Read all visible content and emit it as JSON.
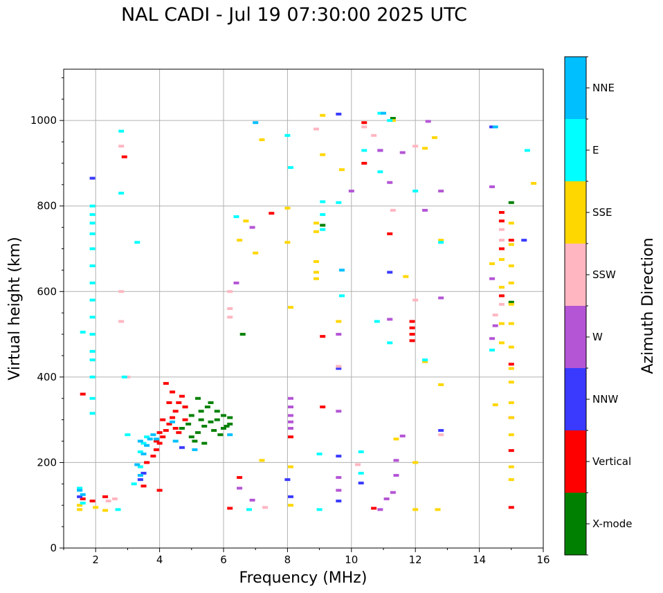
{
  "chart_data": {
    "type": "scatter",
    "title": "NAL CADI - Jul 19 07:30:00 2025 UTC",
    "xlabel": "Frequency (MHz)",
    "ylabel": "Virtual height (km)",
    "xlim": [
      1,
      16
    ],
    "ylim": [
      0,
      1120
    ],
    "xticks": [
      2,
      4,
      6,
      8,
      10,
      12,
      14,
      16
    ],
    "yticks": [
      0,
      200,
      400,
      600,
      800,
      1000
    ],
    "grid": true,
    "colorbar": {
      "label": "Azimuth Direction",
      "categories": [
        "X-mode",
        "Vertical",
        "NNW",
        "W",
        "SSW",
        "SSE",
        "E",
        "NNE"
      ],
      "colors": [
        "#008000",
        "#ff0000",
        "#3a3aff",
        "#b455d5",
        "#ffb6c1",
        "#ffd700",
        "#00ffff",
        "#00bfff"
      ]
    },
    "series": [
      {
        "name": "X-mode",
        "points": [
          [
            5.0,
            260
          ],
          [
            5.2,
            270
          ],
          [
            5.4,
            285
          ],
          [
            5.6,
            295
          ],
          [
            5.8,
            300
          ],
          [
            6.0,
            310
          ],
          [
            6.2,
            305
          ],
          [
            5.3,
            320
          ],
          [
            5.5,
            330
          ],
          [
            5.1,
            250
          ],
          [
            4.9,
            290
          ],
          [
            5.7,
            275
          ],
          [
            5.9,
            265
          ],
          [
            6.1,
            285
          ],
          [
            5.0,
            310
          ],
          [
            4.8,
            330
          ],
          [
            5.2,
            350
          ],
          [
            5.6,
            340
          ],
          [
            5.8,
            320
          ],
          [
            6.0,
            280
          ],
          [
            9.1,
            755
          ],
          [
            15.0,
            808
          ],
          [
            15.0,
            575
          ],
          [
            11.3,
            1005
          ],
          [
            6.6,
            500
          ],
          [
            6.2,
            290
          ],
          [
            5.4,
            245
          ],
          [
            5.3,
            300
          ],
          [
            4.7,
            280
          ]
        ]
      },
      {
        "name": "Vertical",
        "points": [
          [
            3.6,
            200
          ],
          [
            3.8,
            215
          ],
          [
            3.9,
            230
          ],
          [
            4.0,
            245
          ],
          [
            4.1,
            260
          ],
          [
            4.2,
            275
          ],
          [
            4.3,
            290
          ],
          [
            4.4,
            305
          ],
          [
            4.5,
            320
          ],
          [
            4.6,
            340
          ],
          [
            4.7,
            355
          ],
          [
            4.8,
            330
          ],
          [
            4.3,
            340
          ],
          [
            4.4,
            365
          ],
          [
            4.2,
            385
          ],
          [
            4.1,
            300
          ],
          [
            4.0,
            270
          ],
          [
            3.9,
            250
          ],
          [
            4.5,
            280
          ],
          [
            4.6,
            270
          ],
          [
            4.8,
            300
          ],
          [
            11.9,
            500
          ],
          [
            11.9,
            515
          ],
          [
            11.9,
            530
          ],
          [
            11.9,
            485
          ],
          [
            15.0,
            720
          ],
          [
            15.0,
            430
          ],
          [
            15.0,
            305
          ],
          [
            15.0,
            228
          ],
          [
            15.0,
            95
          ],
          [
            14.7,
            785
          ],
          [
            14.7,
            765
          ],
          [
            14.7,
            700
          ],
          [
            14.7,
            590
          ],
          [
            9.1,
            495
          ],
          [
            8.1,
            260
          ],
          [
            10.4,
            900
          ],
          [
            10.4,
            995
          ],
          [
            11.2,
            735
          ],
          [
            6.5,
            165
          ],
          [
            4.0,
            135
          ],
          [
            3.5,
            145
          ],
          [
            1.6,
            360
          ],
          [
            1.6,
            115
          ],
          [
            1.9,
            110
          ],
          [
            2.3,
            120
          ],
          [
            9.1,
            330
          ],
          [
            10.7,
            93
          ],
          [
            6.2,
            93
          ],
          [
            7.5,
            783
          ],
          [
            2.9,
            915
          ]
        ]
      },
      {
        "name": "NNW",
        "points": [
          [
            1.9,
            865
          ],
          [
            3.4,
            160
          ],
          [
            3.5,
            175
          ],
          [
            9.6,
            215
          ],
          [
            12.8,
            275
          ],
          [
            15.4,
            720
          ],
          [
            8.0,
            160
          ],
          [
            10.9,
            930
          ],
          [
            9.6,
            420
          ],
          [
            14.4,
            985
          ],
          [
            11.2,
            645
          ],
          [
            9.6,
            1015
          ],
          [
            10.3,
            152
          ],
          [
            4.7,
            235
          ],
          [
            1.5,
            120
          ],
          [
            8.1,
            120
          ],
          [
            9.6,
            110
          ]
        ]
      },
      {
        "name": "W",
        "points": [
          [
            8.1,
            350
          ],
          [
            8.1,
            330
          ],
          [
            8.1,
            310
          ],
          [
            8.1,
            295
          ],
          [
            8.1,
            280
          ],
          [
            11.4,
            205
          ],
          [
            12.3,
            790
          ],
          [
            12.8,
            835
          ],
          [
            12.8,
            585
          ],
          [
            14.4,
            630
          ],
          [
            14.4,
            490
          ],
          [
            14.5,
            520
          ],
          [
            14.4,
            845
          ],
          [
            11.2,
            535
          ],
          [
            11.2,
            855
          ],
          [
            11.6,
            925
          ],
          [
            9.6,
            500
          ],
          [
            10.9,
            930
          ],
          [
            10.0,
            835
          ],
          [
            6.9,
            750
          ],
          [
            6.4,
            620
          ],
          [
            9.6,
            320
          ],
          [
            9.6,
            135
          ],
          [
            9.6,
            165
          ],
          [
            11.1,
            115
          ],
          [
            11.3,
            130
          ],
          [
            11.4,
            170
          ],
          [
            10.9,
            90
          ],
          [
            6.5,
            140
          ],
          [
            6.9,
            112
          ],
          [
            12.4,
            998
          ],
          [
            11.6,
            262
          ]
        ]
      },
      {
        "name": "SSW",
        "points": [
          [
            6.2,
            600
          ],
          [
            6.2,
            560
          ],
          [
            6.2,
            540
          ],
          [
            2.8,
            940
          ],
          [
            2.8,
            600
          ],
          [
            2.8,
            530
          ],
          [
            14.7,
            745
          ],
          [
            14.7,
            720
          ],
          [
            14.7,
            570
          ],
          [
            14.5,
            545
          ],
          [
            12.8,
            265
          ],
          [
            9.6,
            425
          ],
          [
            10.4,
            985
          ],
          [
            10.7,
            965
          ],
          [
            12.0,
            940
          ],
          [
            12.0,
            580
          ],
          [
            11.3,
            790
          ],
          [
            8.9,
            980
          ],
          [
            3.0,
            400
          ],
          [
            2.4,
            110
          ],
          [
            2.6,
            115
          ],
          [
            7.3,
            95
          ],
          [
            10.2,
            195
          ]
        ]
      },
      {
        "name": "SSE",
        "points": [
          [
            9.1,
            1012
          ],
          [
            9.1,
            920
          ],
          [
            12.3,
            935
          ],
          [
            12.6,
            960
          ],
          [
            12.8,
            720
          ],
          [
            12.8,
            382
          ],
          [
            12.3,
            436
          ],
          [
            15.0,
            760
          ],
          [
            15.0,
            710
          ],
          [
            15.0,
            660
          ],
          [
            15.0,
            620
          ],
          [
            15.0,
            570
          ],
          [
            15.0,
            525
          ],
          [
            15.0,
            470
          ],
          [
            15.0,
            420
          ],
          [
            15.0,
            388
          ],
          [
            15.0,
            340
          ],
          [
            15.0,
            305
          ],
          [
            15.0,
            265
          ],
          [
            15.0,
            190
          ],
          [
            15.0,
            160
          ],
          [
            14.7,
            675
          ],
          [
            14.7,
            610
          ],
          [
            14.7,
            480
          ],
          [
            14.5,
            335
          ],
          [
            14.4,
            665
          ],
          [
            14.7,
            525
          ],
          [
            15.7,
            853
          ],
          [
            12.0,
            200
          ],
          [
            12.0,
            90
          ],
          [
            12.7,
            90
          ],
          [
            8.9,
            760
          ],
          [
            8.9,
            740
          ],
          [
            8.9,
            670
          ],
          [
            8.9,
            630
          ],
          [
            8.9,
            645
          ],
          [
            8.0,
            795
          ],
          [
            8.0,
            715
          ],
          [
            8.1,
            563
          ],
          [
            8.1,
            190
          ],
          [
            8.1,
            100
          ],
          [
            7.2,
            955
          ],
          [
            7.0,
            690
          ],
          [
            6.7,
            765
          ],
          [
            6.5,
            720
          ],
          [
            9.6,
            530
          ],
          [
            9.7,
            885
          ],
          [
            11.7,
            635
          ],
          [
            11.4,
            255
          ],
          [
            7.2,
            205
          ],
          [
            2.0,
            95
          ],
          [
            2.3,
            88
          ],
          [
            1.5,
            100
          ],
          [
            1.5,
            90
          ],
          [
            11.3,
            1000
          ]
        ]
      },
      {
        "name": "E",
        "points": [
          [
            1.9,
            800
          ],
          [
            1.9,
            780
          ],
          [
            1.9,
            760
          ],
          [
            1.9,
            735
          ],
          [
            1.9,
            700
          ],
          [
            1.9,
            660
          ],
          [
            1.9,
            620
          ],
          [
            1.9,
            580
          ],
          [
            1.9,
            540
          ],
          [
            1.9,
            500
          ],
          [
            1.9,
            460
          ],
          [
            1.9,
            440
          ],
          [
            1.9,
            400
          ],
          [
            1.9,
            350
          ],
          [
            1.9,
            315
          ],
          [
            1.6,
            505
          ],
          [
            2.8,
            975
          ],
          [
            2.8,
            830
          ],
          [
            3.3,
            715
          ],
          [
            9.1,
            780
          ],
          [
            9.1,
            810
          ],
          [
            9.1,
            745
          ],
          [
            9.0,
            220
          ],
          [
            8.1,
            890
          ],
          [
            8.0,
            965
          ],
          [
            10.8,
            530
          ],
          [
            11.2,
            480
          ],
          [
            10.4,
            930
          ],
          [
            10.9,
            880
          ],
          [
            12.0,
            835
          ],
          [
            12.8,
            715
          ],
          [
            14.4,
            463
          ],
          [
            15.5,
            930
          ],
          [
            12.3,
            440
          ],
          [
            9.0,
            90
          ],
          [
            10.3,
            175
          ],
          [
            10.3,
            225
          ],
          [
            6.8,
            90
          ],
          [
            6.4,
            775
          ],
          [
            3.4,
            225
          ],
          [
            3.5,
            245
          ],
          [
            3.6,
            260
          ],
          [
            3.4,
            190
          ],
          [
            3.2,
            150
          ],
          [
            2.9,
            400
          ],
          [
            3.0,
            265
          ],
          [
            2.7,
            90
          ],
          [
            1.5,
            140
          ],
          [
            1.6,
            105
          ],
          [
            11.2,
            1000
          ],
          [
            10.9,
            1017
          ],
          [
            9.6,
            808
          ],
          [
            9.7,
            590
          ]
        ]
      },
      {
        "name": "NNE",
        "points": [
          [
            3.5,
            220
          ],
          [
            3.6,
            240
          ],
          [
            3.7,
            255
          ],
          [
            3.8,
            265
          ],
          [
            3.9,
            255
          ],
          [
            3.4,
            250
          ],
          [
            3.3,
            195
          ],
          [
            3.4,
            170
          ],
          [
            4.4,
            295
          ],
          [
            4.5,
            250
          ],
          [
            5.1,
            230
          ],
          [
            6.2,
            265
          ],
          [
            1.5,
            135
          ],
          [
            1.6,
            125
          ],
          [
            7.0,
            995
          ],
          [
            9.7,
            650
          ],
          [
            11.0,
            1017
          ],
          [
            14.5,
            985
          ]
        ]
      }
    ]
  }
}
